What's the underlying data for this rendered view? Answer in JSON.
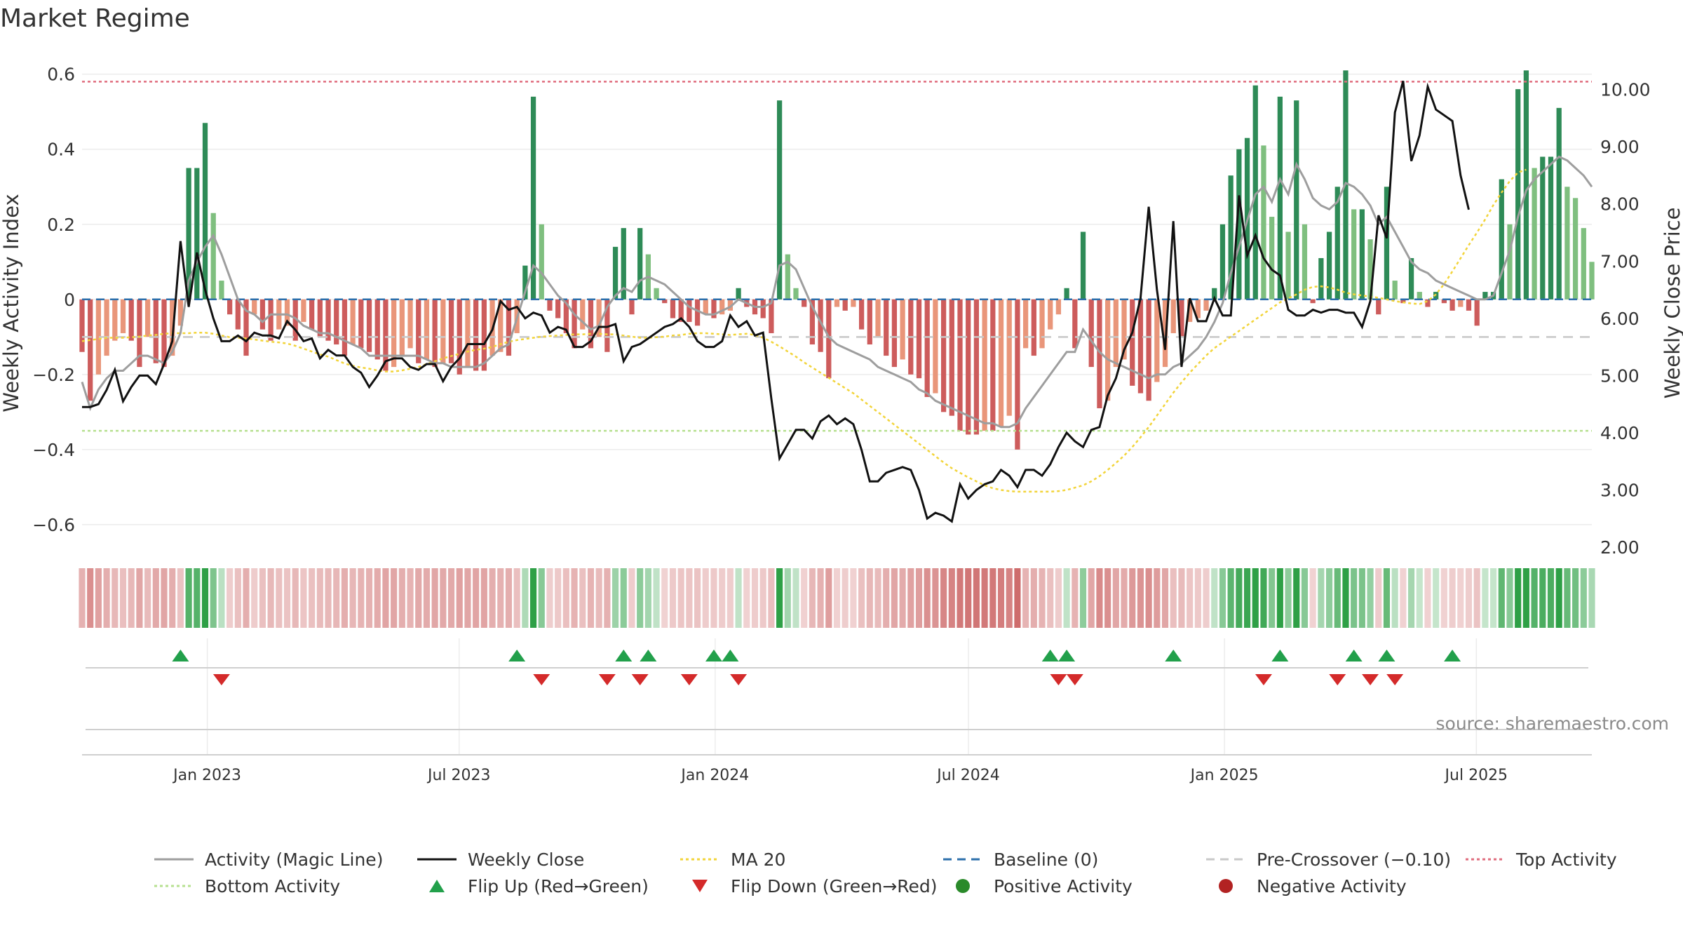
{
  "chart_data": {
    "type": "bar",
    "title": "Market Regime",
    "ylabel": "Weekly Activity Index",
    "y2label": "Weekly Close Price",
    "ylim": [
      -0.66,
      0.62
    ],
    "y2lim": [
      2.0,
      10.4
    ],
    "yticks": [
      "−0.6",
      "−0.4",
      "−0.2",
      "0",
      "0.2",
      "0.4",
      "0.6"
    ],
    "y2ticks": [
      "2.00",
      "3.00",
      "4.00",
      "5.00",
      "6.00",
      "7.00",
      "8.00",
      "9.00",
      "10.00"
    ],
    "x_start": "2022-10-03",
    "x_end": "2025-09-22",
    "xticks": [
      {
        "date": "2023-01-01",
        "label": "Jan 2023"
      },
      {
        "date": "2023-07-01",
        "label": "Jul 2023"
      },
      {
        "date": "2024-01-01",
        "label": "Jan 2024"
      },
      {
        "date": "2024-07-01",
        "label": "Jul 2024"
      },
      {
        "date": "2025-01-01",
        "label": "Jan 2025"
      },
      {
        "date": "2025-07-01",
        "label": "Jul 2025"
      }
    ],
    "reference_lines": {
      "top_activity": 0.58,
      "bottom_activity": -0.35,
      "pre_crossover": -0.1,
      "baseline": 0
    },
    "activity_weekly": [
      -0.14,
      -0.27,
      -0.2,
      -0.15,
      -0.11,
      -0.09,
      -0.11,
      -0.18,
      -0.1,
      -0.17,
      -0.18,
      -0.15,
      -0.07,
      0.35,
      0.35,
      0.47,
      0.23,
      0.05,
      -0.04,
      -0.08,
      -0.15,
      -0.04,
      -0.08,
      -0.11,
      -0.08,
      -0.07,
      -0.11,
      -0.06,
      -0.08,
      -0.1,
      -0.11,
      -0.12,
      -0.15,
      -0.12,
      -0.13,
      -0.14,
      -0.16,
      -0.19,
      -0.18,
      -0.15,
      -0.13,
      -0.17,
      -0.16,
      -0.18,
      -0.17,
      -0.17,
      -0.2,
      -0.18,
      -0.19,
      -0.19,
      -0.15,
      -0.14,
      -0.15,
      -0.09,
      0.09,
      0.54,
      0.2,
      -0.03,
      -0.05,
      -0.09,
      -0.13,
      -0.08,
      -0.13,
      -0.1,
      -0.14,
      0.14,
      0.19,
      -0.04,
      0.19,
      0.12,
      0.03,
      -0.01,
      -0.05,
      -0.06,
      -0.06,
      -0.07,
      -0.04,
      -0.05,
      -0.04,
      -0.03,
      0.03,
      -0.02,
      -0.04,
      -0.05,
      -0.09,
      0.53,
      0.12,
      0.03,
      -0.02,
      -0.12,
      -0.14,
      -0.21,
      -0.02,
      -0.03,
      -0.02,
      -0.08,
      -0.12,
      -0.1,
      -0.15,
      -0.18,
      -0.16,
      -0.2,
      -0.21,
      -0.26,
      -0.25,
      -0.3,
      -0.31,
      -0.35,
      -0.36,
      -0.36,
      -0.35,
      -0.35,
      -0.34,
      -0.31,
      -0.4,
      -0.13,
      -0.15,
      -0.13,
      -0.08,
      -0.04,
      0.03,
      -0.13,
      0.18,
      -0.18,
      -0.29,
      -0.27,
      -0.18,
      -0.16,
      -0.23,
      -0.25,
      -0.27,
      -0.22,
      -0.18,
      -0.09,
      -0.1,
      -0.06,
      -0.05,
      -0.03,
      0.03,
      0.2,
      0.33,
      0.4,
      0.43,
      0.57,
      0.41,
      0.22,
      0.54,
      0.18,
      0.53,
      0.2,
      -0.01,
      0.11,
      0.18,
      0.3,
      0.61,
      0.24,
      0.24,
      0.16,
      -0.04,
      0.3,
      0.05,
      -0.01,
      0.11,
      0.02,
      -0.02,
      0.02,
      -0.01,
      -0.03,
      -0.02,
      -0.03,
      -0.07,
      0.02,
      0.02,
      0.32,
      0.2,
      0.56,
      0.61,
      0.35,
      0.38,
      0.38,
      0.51,
      0.3,
      0.27,
      0.19,
      0.1
    ],
    "activity_magic_line": [
      -0.22,
      -0.29,
      -0.24,
      -0.21,
      -0.19,
      -0.19,
      -0.17,
      -0.15,
      -0.15,
      -0.16,
      -0.17,
      -0.14,
      -0.09,
      0.05,
      0.1,
      0.14,
      0.17,
      0.12,
      0.06,
      0.0,
      -0.03,
      -0.04,
      -0.06,
      -0.04,
      -0.04,
      -0.04,
      -0.05,
      -0.07,
      -0.08,
      -0.09,
      -0.09,
      -0.1,
      -0.11,
      -0.12,
      -0.13,
      -0.15,
      -0.15,
      -0.15,
      -0.15,
      -0.15,
      -0.15,
      -0.15,
      -0.16,
      -0.17,
      -0.17,
      -0.18,
      -0.18,
      -0.18,
      -0.18,
      -0.17,
      -0.15,
      -0.13,
      -0.12,
      -0.05,
      0.02,
      0.09,
      0.07,
      0.04,
      0.01,
      -0.01,
      -0.04,
      -0.06,
      -0.08,
      -0.07,
      -0.02,
      0.01,
      0.03,
      0.02,
      0.05,
      0.06,
      0.05,
      0.04,
      0.02,
      0.0,
      -0.02,
      -0.03,
      -0.04,
      -0.04,
      -0.03,
      -0.02,
      0.0,
      -0.01,
      -0.02,
      -0.02,
      -0.01,
      0.09,
      0.1,
      0.08,
      0.03,
      -0.02,
      -0.06,
      -0.1,
      -0.12,
      -0.13,
      -0.14,
      -0.15,
      -0.16,
      -0.18,
      -0.19,
      -0.2,
      -0.21,
      -0.22,
      -0.24,
      -0.25,
      -0.27,
      -0.28,
      -0.29,
      -0.3,
      -0.31,
      -0.32,
      -0.33,
      -0.33,
      -0.34,
      -0.34,
      -0.33,
      -0.29,
      -0.26,
      -0.23,
      -0.2,
      -0.17,
      -0.14,
      -0.14,
      -0.08,
      -0.11,
      -0.14,
      -0.16,
      -0.17,
      -0.18,
      -0.19,
      -0.2,
      -0.21,
      -0.2,
      -0.2,
      -0.18,
      -0.17,
      -0.15,
      -0.13,
      -0.1,
      -0.06,
      -0.01,
      0.07,
      0.14,
      0.21,
      0.28,
      0.3,
      0.26,
      0.32,
      0.28,
      0.36,
      0.32,
      0.27,
      0.25,
      0.24,
      0.26,
      0.31,
      0.3,
      0.28,
      0.25,
      0.2,
      0.22,
      0.18,
      0.14,
      0.1,
      0.08,
      0.07,
      0.05,
      0.04,
      0.03,
      0.02,
      0.01,
      0.0,
      0.0,
      0.01,
      0.07,
      0.13,
      0.22,
      0.29,
      0.32,
      0.34,
      0.36,
      0.38,
      0.37,
      0.35,
      0.33,
      0.3
    ],
    "weekly_close": [
      4.45,
      4.45,
      4.5,
      4.75,
      5.1,
      4.55,
      4.8,
      5.0,
      5.0,
      4.85,
      5.2,
      5.6,
      7.35,
      6.2,
      7.15,
      6.5,
      6.0,
      5.6,
      5.6,
      5.7,
      5.6,
      5.75,
      5.7,
      5.7,
      5.65,
      5.95,
      5.8,
      5.6,
      5.65,
      5.3,
      5.45,
      5.35,
      5.35,
      5.15,
      5.05,
      4.8,
      5.0,
      5.25,
      5.3,
      5.3,
      5.15,
      5.1,
      5.2,
      5.2,
      4.9,
      5.15,
      5.3,
      5.55,
      5.55,
      5.55,
      5.8,
      6.3,
      6.15,
      6.2,
      6.0,
      6.1,
      6.05,
      5.75,
      5.85,
      5.8,
      5.5,
      5.5,
      5.6,
      5.85,
      5.85,
      5.9,
      5.25,
      5.5,
      5.55,
      5.65,
      5.75,
      5.85,
      5.9,
      6.0,
      5.85,
      5.6,
      5.5,
      5.5,
      5.6,
      6.05,
      5.85,
      5.95,
      5.7,
      5.75,
      4.6,
      3.55,
      3.8,
      4.05,
      4.05,
      3.9,
      4.2,
      4.3,
      4.15,
      4.25,
      4.15,
      3.7,
      3.15,
      3.15,
      3.3,
      3.35,
      3.4,
      3.35,
      3.0,
      2.5,
      2.6,
      2.55,
      2.45,
      3.1,
      2.85,
      3.0,
      3.1,
      3.15,
      3.35,
      3.25,
      3.05,
      3.35,
      3.35,
      3.25,
      3.45,
      3.75,
      4.0,
      3.85,
      3.75,
      4.05,
      4.1,
      4.65,
      4.95,
      5.45,
      5.75,
      6.35,
      7.95,
      6.5,
      5.45,
      7.7,
      5.15,
      6.35,
      5.95,
      5.95,
      6.35,
      6.05,
      6.05,
      8.15,
      7.1,
      7.45,
      7.05,
      6.85,
      6.75,
      6.15,
      6.05,
      6.05,
      6.15,
      6.1,
      6.15,
      6.15,
      6.1,
      6.1,
      5.85,
      6.3,
      7.8,
      7.4,
      9.6,
      10.15,
      8.75,
      9.2,
      10.05,
      9.65,
      9.55,
      9.45,
      8.5,
      7.9
    ],
    "ma20": [
      5.6,
      5.62,
      5.64,
      5.66,
      5.66,
      5.66,
      5.67,
      5.68,
      5.7,
      5.71,
      5.73,
      5.74,
      5.74,
      5.74,
      5.75,
      5.75,
      5.73,
      5.7,
      5.67,
      5.66,
      5.65,
      5.63,
      5.61,
      5.59,
      5.58,
      5.56,
      5.52,
      5.47,
      5.42,
      5.37,
      5.33,
      5.27,
      5.21,
      5.17,
      5.14,
      5.12,
      5.09,
      5.07,
      5.07,
      5.09,
      5.12,
      5.15,
      5.2,
      5.25,
      5.3,
      5.34,
      5.38,
      5.42,
      5.45,
      5.47,
      5.5,
      5.55,
      5.59,
      5.62,
      5.64,
      5.66,
      5.68,
      5.69,
      5.7,
      5.71,
      5.72,
      5.72,
      5.73,
      5.73,
      5.72,
      5.72,
      5.7,
      5.68,
      5.66,
      5.66,
      5.67,
      5.68,
      5.7,
      5.71,
      5.73,
      5.74,
      5.74,
      5.73,
      5.72,
      5.71,
      5.72,
      5.73,
      5.71,
      5.66,
      5.59,
      5.51,
      5.42,
      5.33,
      5.23,
      5.14,
      5.05,
      4.96,
      4.87,
      4.78,
      4.69,
      4.58,
      4.47,
      4.36,
      4.25,
      4.14,
      4.03,
      3.92,
      3.81,
      3.7,
      3.59,
      3.48,
      3.38,
      3.3,
      3.22,
      3.15,
      3.08,
      3.03,
      3.0,
      2.98,
      2.97,
      2.97,
      2.97,
      2.97,
      2.97,
      2.98,
      3.0,
      3.04,
      3.08,
      3.15,
      3.24,
      3.35,
      3.47,
      3.6,
      3.75,
      3.92,
      4.1,
      4.3,
      4.5,
      4.7,
      4.88,
      5.05,
      5.2,
      5.35,
      5.48,
      5.58,
      5.68,
      5.78,
      5.88,
      5.98,
      6.08,
      6.18,
      6.28,
      6.35,
      6.42,
      6.5,
      6.55,
      6.56,
      6.54,
      6.5,
      6.45,
      6.42,
      6.4,
      6.38,
      6.36,
      6.33,
      6.3,
      6.28,
      6.26,
      6.25,
      6.3,
      6.42,
      6.6,
      6.82,
      7.05,
      7.28,
      7.5,
      7.73,
      7.98,
      8.2,
      8.4,
      8.55,
      8.6
    ],
    "flip_up_weeks": [
      12,
      53,
      66,
      69,
      77,
      79,
      118,
      120,
      133,
      146,
      155,
      159,
      167
    ],
    "flip_down_weeks": [
      17,
      56,
      64,
      68,
      74,
      80,
      119,
      121,
      144,
      153,
      157,
      160
    ],
    "source_text": "source: sharemaestro.com"
  },
  "legend": [
    {
      "label": "Activity (Magic Line)",
      "kind": "line",
      "color": "#9e9e9e",
      "dash": ""
    },
    {
      "label": "Weekly Close",
      "kind": "line",
      "color": "#111111",
      "dash": ""
    },
    {
      "label": "MA 20",
      "kind": "line",
      "color": "#f2d43a",
      "dash": "4 4"
    },
    {
      "label": "Baseline (0)",
      "kind": "line",
      "color": "#2c6fab",
      "dash": "12 8"
    },
    {
      "label": "Pre-Crossover (−0.10)",
      "kind": "line",
      "color": "#c8c8c8",
      "dash": "12 8"
    },
    {
      "label": "Top Activity",
      "kind": "line",
      "color": "#e06d7e",
      "dash": "4 4"
    },
    {
      "label": "Bottom Activity",
      "kind": "line",
      "color": "#b6e08f",
      "dash": "4 4"
    },
    {
      "label": "Flip Up (Red→Green)",
      "kind": "tri-up",
      "color": "#22a04b"
    },
    {
      "label": "Flip Down (Green→Red)",
      "kind": "tri-down",
      "color": "#d42a2a"
    },
    {
      "label": "Positive Activity",
      "kind": "dot",
      "color": "#2a8a2a"
    },
    {
      "label": "Negative Activity",
      "kind": "dot",
      "color": "#b22222"
    }
  ],
  "colors": {
    "pos_strong": "#2e8b57",
    "pos_light": "#7fbf7f",
    "neg_strong": "#cd5c5c",
    "neg_light": "#e9967a"
  }
}
